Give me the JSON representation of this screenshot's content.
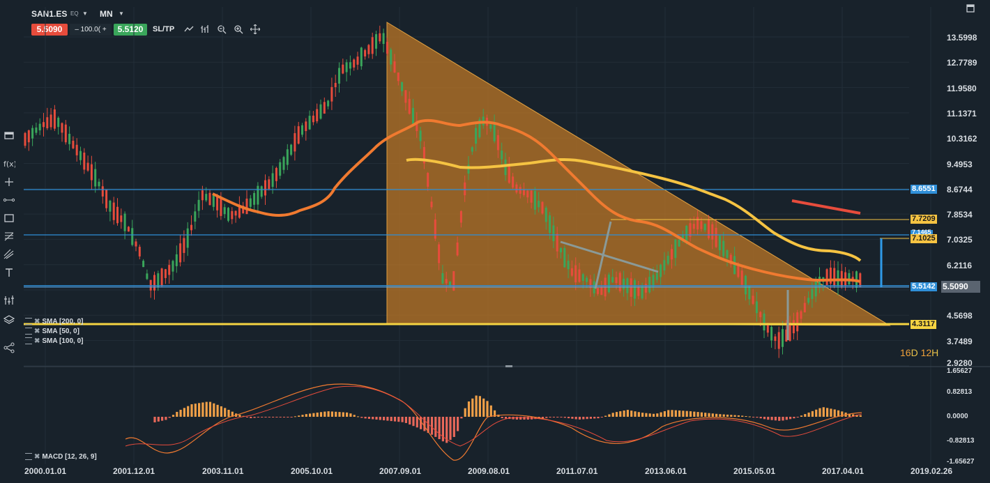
{
  "toolbar": {
    "symbol": "SAN1.ES",
    "exchange": "EQ",
    "timeframe": "MN",
    "bid": "5.5090",
    "quantity": "100.0(",
    "ask": "5.5120",
    "sltp_label": "SL/TP",
    "icons": [
      "chart-type-icon",
      "bars-icon",
      "zoom-out-icon",
      "zoom-in-icon",
      "crosshair-icon"
    ]
  },
  "left_tools": [
    "rectangle-icon",
    "function-icon",
    "plus-icon",
    "line-icon",
    "rect-draw-icon",
    "fibonacci-icon",
    "pitchfork-icon",
    "text-icon",
    "indicator-icon",
    "layers-icon",
    "share-icon"
  ],
  "indicators": {
    "sma200": "SMA [200, 0]",
    "sma50": "SMA [50, 0]",
    "sma100": "SMA [100, 0]",
    "macd": "MACD [12, 26, 9]"
  },
  "price_axis": [
    "13.5998",
    "12.7789",
    "11.9580",
    "11.1371",
    "10.3162",
    "9.4953",
    "8.6744",
    "7.8534",
    "7.0325",
    "6.2116",
    "5.5090",
    "4.5698",
    "3.7489",
    "2.9280"
  ],
  "macd_axis": [
    "1.65627",
    "0.82813",
    "0.0000",
    "-0.82813",
    "-1.65627"
  ],
  "date_axis": [
    "2000.01.01",
    "2001.12.01",
    "2003.11.01",
    "2005.10.01",
    "2007.09.01",
    "2009.08.01",
    "2011.07.01",
    "2013.06.01",
    "2015.05.01",
    "2017.04.01",
    "2019.02.26"
  ],
  "price_tags": {
    "h1": "8.6551",
    "h2": "7.7209",
    "h3": "7.1025",
    "h3_behind": "7.1465",
    "h4": "5.5142",
    "current": "5.5090",
    "h5": "4.3117"
  },
  "countdown": {
    "days": "16",
    "d_unit": "D",
    "hours": "12",
    "h_unit": "H"
  },
  "colors": {
    "background": "#18222b",
    "up_candle": "#3aa65b",
    "down_candle": "#e74c3c",
    "sma50": "#f07a30",
    "sma100": "#f5c342",
    "hline": "#2f8fd8",
    "support": "#f5d442",
    "triangle_fill": "#c47a25"
  }
}
